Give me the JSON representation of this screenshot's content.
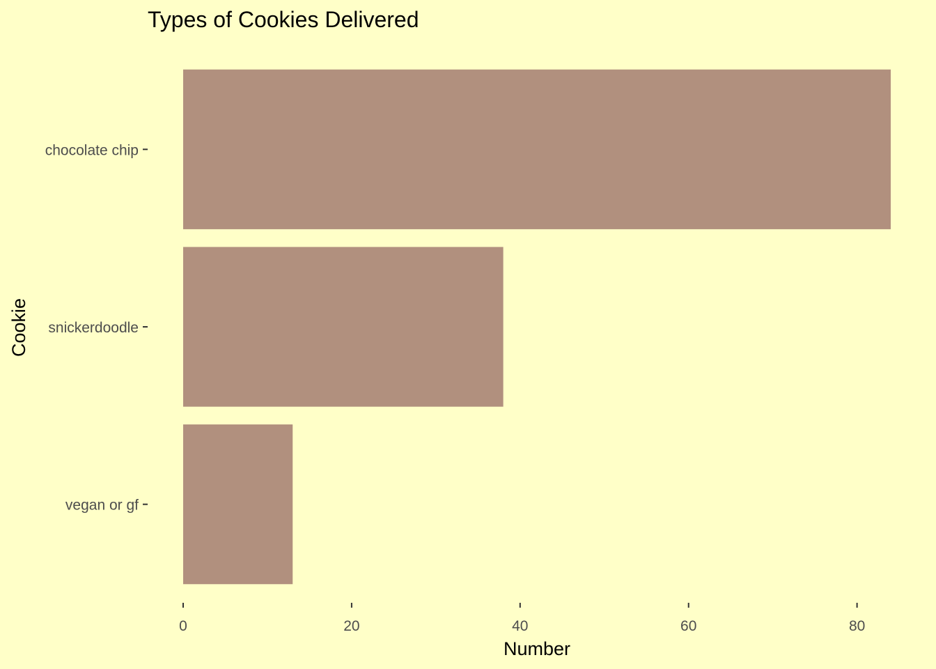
{
  "chart_data": {
    "type": "bar",
    "orientation": "horizontal",
    "title": "Types of Cookies Delivered",
    "xlabel": "Number",
    "ylabel": "Cookie",
    "categories": [
      "chocolate chip",
      "snickerdoodle",
      "vegan or gf"
    ],
    "values": [
      84,
      38,
      13
    ],
    "xlim": [
      0,
      84
    ],
    "xticks": [
      0,
      20,
      40,
      60,
      80
    ],
    "xtick_labels": [
      "0",
      "20",
      "40",
      "60",
      "80"
    ],
    "grid": false,
    "legend": "none",
    "colors": {
      "background": "#FFFFC8",
      "bar": "#B1907E",
      "tick_text": "#4D4D4D",
      "tick_mark": "#333333",
      "title_text": "#000000"
    }
  }
}
